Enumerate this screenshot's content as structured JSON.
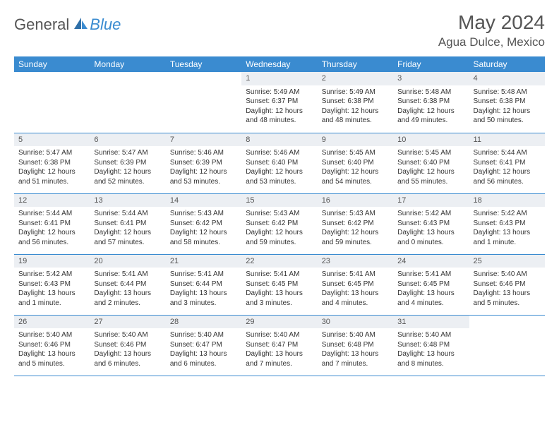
{
  "brand": {
    "part1": "General",
    "part2": "Blue"
  },
  "title": "May 2024",
  "location": "Agua Dulce, Mexico",
  "colors": {
    "accent": "#3a8bd0",
    "daynum_bg": "#eceff3",
    "text": "#333333",
    "header_text": "#555555"
  },
  "day_headers": [
    "Sunday",
    "Monday",
    "Tuesday",
    "Wednesday",
    "Thursday",
    "Friday",
    "Saturday"
  ],
  "weeks": [
    [
      null,
      null,
      null,
      {
        "n": "1",
        "sr": "5:49 AM",
        "ss": "6:37 PM",
        "dh": "12",
        "dm": "48"
      },
      {
        "n": "2",
        "sr": "5:49 AM",
        "ss": "6:38 PM",
        "dh": "12",
        "dm": "48"
      },
      {
        "n": "3",
        "sr": "5:48 AM",
        "ss": "6:38 PM",
        "dh": "12",
        "dm": "49"
      },
      {
        "n": "4",
        "sr": "5:48 AM",
        "ss": "6:38 PM",
        "dh": "12",
        "dm": "50"
      }
    ],
    [
      {
        "n": "5",
        "sr": "5:47 AM",
        "ss": "6:38 PM",
        "dh": "12",
        "dm": "51"
      },
      {
        "n": "6",
        "sr": "5:47 AM",
        "ss": "6:39 PM",
        "dh": "12",
        "dm": "52"
      },
      {
        "n": "7",
        "sr": "5:46 AM",
        "ss": "6:39 PM",
        "dh": "12",
        "dm": "53"
      },
      {
        "n": "8",
        "sr": "5:46 AM",
        "ss": "6:40 PM",
        "dh": "12",
        "dm": "53"
      },
      {
        "n": "9",
        "sr": "5:45 AM",
        "ss": "6:40 PM",
        "dh": "12",
        "dm": "54"
      },
      {
        "n": "10",
        "sr": "5:45 AM",
        "ss": "6:40 PM",
        "dh": "12",
        "dm": "55"
      },
      {
        "n": "11",
        "sr": "5:44 AM",
        "ss": "6:41 PM",
        "dh": "12",
        "dm": "56"
      }
    ],
    [
      {
        "n": "12",
        "sr": "5:44 AM",
        "ss": "6:41 PM",
        "dh": "12",
        "dm": "56"
      },
      {
        "n": "13",
        "sr": "5:44 AM",
        "ss": "6:41 PM",
        "dh": "12",
        "dm": "57"
      },
      {
        "n": "14",
        "sr": "5:43 AM",
        "ss": "6:42 PM",
        "dh": "12",
        "dm": "58"
      },
      {
        "n": "15",
        "sr": "5:43 AM",
        "ss": "6:42 PM",
        "dh": "12",
        "dm": "59"
      },
      {
        "n": "16",
        "sr": "5:43 AM",
        "ss": "6:42 PM",
        "dh": "12",
        "dm": "59"
      },
      {
        "n": "17",
        "sr": "5:42 AM",
        "ss": "6:43 PM",
        "dh": "13",
        "dm": "0"
      },
      {
        "n": "18",
        "sr": "5:42 AM",
        "ss": "6:43 PM",
        "dh": "13",
        "dm": "1"
      }
    ],
    [
      {
        "n": "19",
        "sr": "5:42 AM",
        "ss": "6:43 PM",
        "dh": "13",
        "dm": "1"
      },
      {
        "n": "20",
        "sr": "5:41 AM",
        "ss": "6:44 PM",
        "dh": "13",
        "dm": "2"
      },
      {
        "n": "21",
        "sr": "5:41 AM",
        "ss": "6:44 PM",
        "dh": "13",
        "dm": "3"
      },
      {
        "n": "22",
        "sr": "5:41 AM",
        "ss": "6:45 PM",
        "dh": "13",
        "dm": "3"
      },
      {
        "n": "23",
        "sr": "5:41 AM",
        "ss": "6:45 PM",
        "dh": "13",
        "dm": "4"
      },
      {
        "n": "24",
        "sr": "5:41 AM",
        "ss": "6:45 PM",
        "dh": "13",
        "dm": "4"
      },
      {
        "n": "25",
        "sr": "5:40 AM",
        "ss": "6:46 PM",
        "dh": "13",
        "dm": "5"
      }
    ],
    [
      {
        "n": "26",
        "sr": "5:40 AM",
        "ss": "6:46 PM",
        "dh": "13",
        "dm": "5"
      },
      {
        "n": "27",
        "sr": "5:40 AM",
        "ss": "6:46 PM",
        "dh": "13",
        "dm": "6"
      },
      {
        "n": "28",
        "sr": "5:40 AM",
        "ss": "6:47 PM",
        "dh": "13",
        "dm": "6"
      },
      {
        "n": "29",
        "sr": "5:40 AM",
        "ss": "6:47 PM",
        "dh": "13",
        "dm": "7"
      },
      {
        "n": "30",
        "sr": "5:40 AM",
        "ss": "6:48 PM",
        "dh": "13",
        "dm": "7"
      },
      {
        "n": "31",
        "sr": "5:40 AM",
        "ss": "6:48 PM",
        "dh": "13",
        "dm": "8"
      },
      null
    ]
  ],
  "labels": {
    "sunrise_prefix": "Sunrise: ",
    "sunset_prefix": "Sunset: ",
    "daylight_prefix": "Daylight: ",
    "hours_word": " hours",
    "and_word": "and ",
    "minutes_word": " minutes.",
    "minute_word": " minute."
  }
}
